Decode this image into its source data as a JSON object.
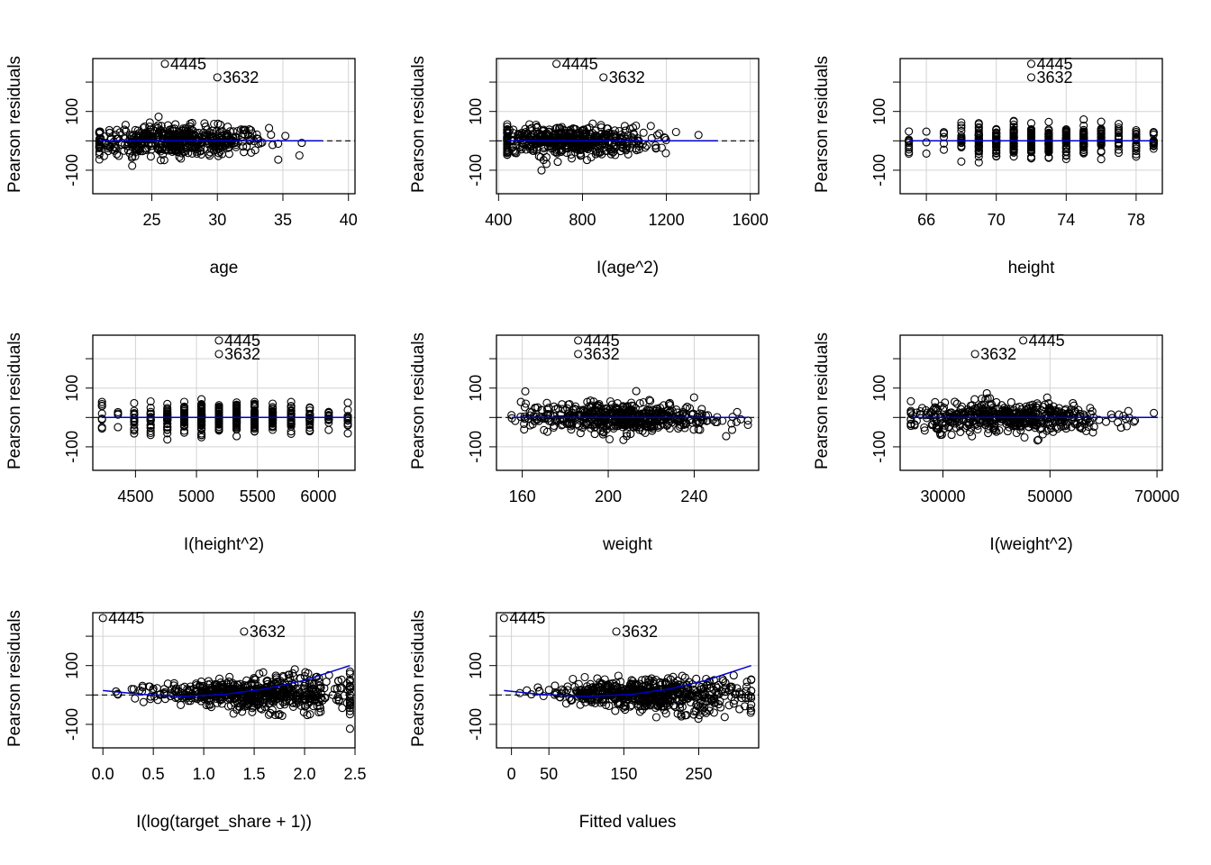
{
  "figure": {
    "colors": {
      "points": "#000000",
      "fit_line": "#0000cc",
      "grid": "#d3d3d3",
      "zero_line": "#000000"
    },
    "y_label": "Pearson residuals",
    "y_ticks": [
      {
        "value": 100,
        "label": "100"
      },
      {
        "value": -100,
        "label": "-100"
      }
    ],
    "y_range": [
      -180,
      280
    ]
  },
  "chart_data": [
    {
      "type": "scatter",
      "xlabel": "age",
      "ylabel": "Pearson residuals",
      "xlim": [
        20.5,
        40.5
      ],
      "xticks": [
        25,
        30,
        35,
        40
      ],
      "cloud": {
        "xmin": 21,
        "xmax": 38,
        "center": 27,
        "spread": 25,
        "count": 520
      },
      "fit": {
        "type": "flat",
        "value": 0
      },
      "annotations": [
        {
          "label": "4445",
          "x": 26,
          "y": 262
        },
        {
          "label": "3632",
          "x": 30,
          "y": 216
        }
      ]
    },
    {
      "type": "scatter",
      "xlabel": "I(age^2)",
      "ylabel": "Pearson residuals",
      "xlim": [
        390,
        1640
      ],
      "xticks": [
        400,
        800,
        1200,
        1600
      ],
      "cloud": {
        "xmin": 441,
        "xmax": 1444,
        "center": 720,
        "spread": 25,
        "count": 520
      },
      "fit": {
        "type": "flat",
        "value": 0
      },
      "annotations": [
        {
          "label": "4445",
          "x": 676,
          "y": 262
        },
        {
          "label": "3632",
          "x": 900,
          "y": 216
        }
      ]
    },
    {
      "type": "scatter",
      "xlabel": "height",
      "ylabel": "Pearson residuals",
      "xlim": [
        64.5,
        79.5
      ],
      "xticks": [
        66,
        70,
        74,
        78
      ],
      "cloud": {
        "xmin": 65,
        "xmax": 79,
        "center": 73,
        "spread": 25,
        "count": 480,
        "discrete": [
          65,
          66,
          67,
          68,
          69,
          70,
          71,
          72,
          73,
          74,
          75,
          76,
          77,
          78,
          79
        ]
      },
      "fit": {
        "type": "flat",
        "value": 0
      },
      "annotations": [
        {
          "label": "4445",
          "x": 72,
          "y": 262
        },
        {
          "label": "3632",
          "x": 72,
          "y": 216
        }
      ]
    },
    {
      "type": "scatter",
      "xlabel": "I(height^2)",
      "ylabel": "Pearson residuals",
      "xlim": [
        4150,
        6300
      ],
      "xticks": [
        4500,
        5000,
        5500,
        6000
      ],
      "cloud": {
        "xmin": 4225,
        "xmax": 6241,
        "center": 5300,
        "spread": 25,
        "count": 480,
        "discrete": [
          4225,
          4356,
          4489,
          4624,
          4761,
          4900,
          5041,
          5184,
          5329,
          5476,
          5625,
          5776,
          5929,
          6084,
          6241
        ]
      },
      "fit": {
        "type": "flat",
        "value": 0
      },
      "annotations": [
        {
          "label": "4445",
          "x": 5184,
          "y": 262
        },
        {
          "label": "3632",
          "x": 5184,
          "y": 216
        }
      ]
    },
    {
      "type": "scatter",
      "xlabel": "weight",
      "ylabel": "Pearson residuals",
      "xlim": [
        148,
        270
      ],
      "xticks": [
        160,
        200,
        240
      ],
      "cloud": {
        "xmin": 155,
        "xmax": 265,
        "center": 205,
        "spread": 25,
        "count": 520
      },
      "fit": {
        "type": "flat",
        "value": 0
      },
      "annotations": [
        {
          "label": "4445",
          "x": 186,
          "y": 262
        },
        {
          "label": "3632",
          "x": 186,
          "y": 216
        }
      ]
    },
    {
      "type": "scatter",
      "xlabel": "I(weight^2)",
      "ylabel": "Pearson residuals",
      "xlim": [
        22000,
        71000
      ],
      "xticks": [
        30000,
        50000,
        70000
      ],
      "cloud": {
        "xmin": 24000,
        "xmax": 70000,
        "center": 42000,
        "spread": 25,
        "count": 520
      },
      "fit": {
        "type": "flat",
        "value": 0
      },
      "annotations": [
        {
          "label": "4445",
          "x": 45000,
          "y": 262
        },
        {
          "label": "3632",
          "x": 36000,
          "y": 216
        }
      ]
    },
    {
      "type": "scatter",
      "xlabel": "I(log(target_share + 1))",
      "ylabel": "Pearson residuals",
      "xlim": [
        -0.1,
        2.5
      ],
      "xticks": [
        0.0,
        0.5,
        1.0,
        1.5,
        2.0,
        2.5
      ],
      "xticklabels": [
        "0.0",
        "0.5",
        "1.0",
        "1.5",
        "2.0",
        "2.5"
      ],
      "cloud": {
        "xmin": 0.0,
        "xmax": 2.45,
        "center": 1.5,
        "spread": 25,
        "count": 600,
        "funnel": true
      },
      "fit": {
        "type": "curve",
        "points": [
          [
            0.0,
            15
          ],
          [
            0.4,
            2
          ],
          [
            0.8,
            -5
          ],
          [
            1.2,
            2
          ],
          [
            1.6,
            20
          ],
          [
            2.0,
            50
          ],
          [
            2.45,
            100
          ]
        ]
      },
      "annotations": [
        {
          "label": "4445",
          "x": 0.0,
          "y": 262
        },
        {
          "label": "3632",
          "x": 1.4,
          "y": 216
        }
      ]
    },
    {
      "type": "scatter",
      "xlabel": "Fitted values",
      "ylabel": "Pearson residuals",
      "xlim": [
        -20,
        330
      ],
      "xticks": [
        0,
        50,
        150,
        250
      ],
      "cloud": {
        "xmin": -10,
        "xmax": 320,
        "center": 180,
        "spread": 25,
        "count": 600,
        "funnel": true
      },
      "fit": {
        "type": "curve",
        "points": [
          [
            -10,
            15
          ],
          [
            40,
            2
          ],
          [
            100,
            -5
          ],
          [
            160,
            2
          ],
          [
            210,
            20
          ],
          [
            260,
            50
          ],
          [
            320,
            100
          ]
        ]
      },
      "annotations": [
        {
          "label": "4445",
          "x": -10,
          "y": 262
        },
        {
          "label": "3632",
          "x": 140,
          "y": 216
        }
      ]
    }
  ]
}
